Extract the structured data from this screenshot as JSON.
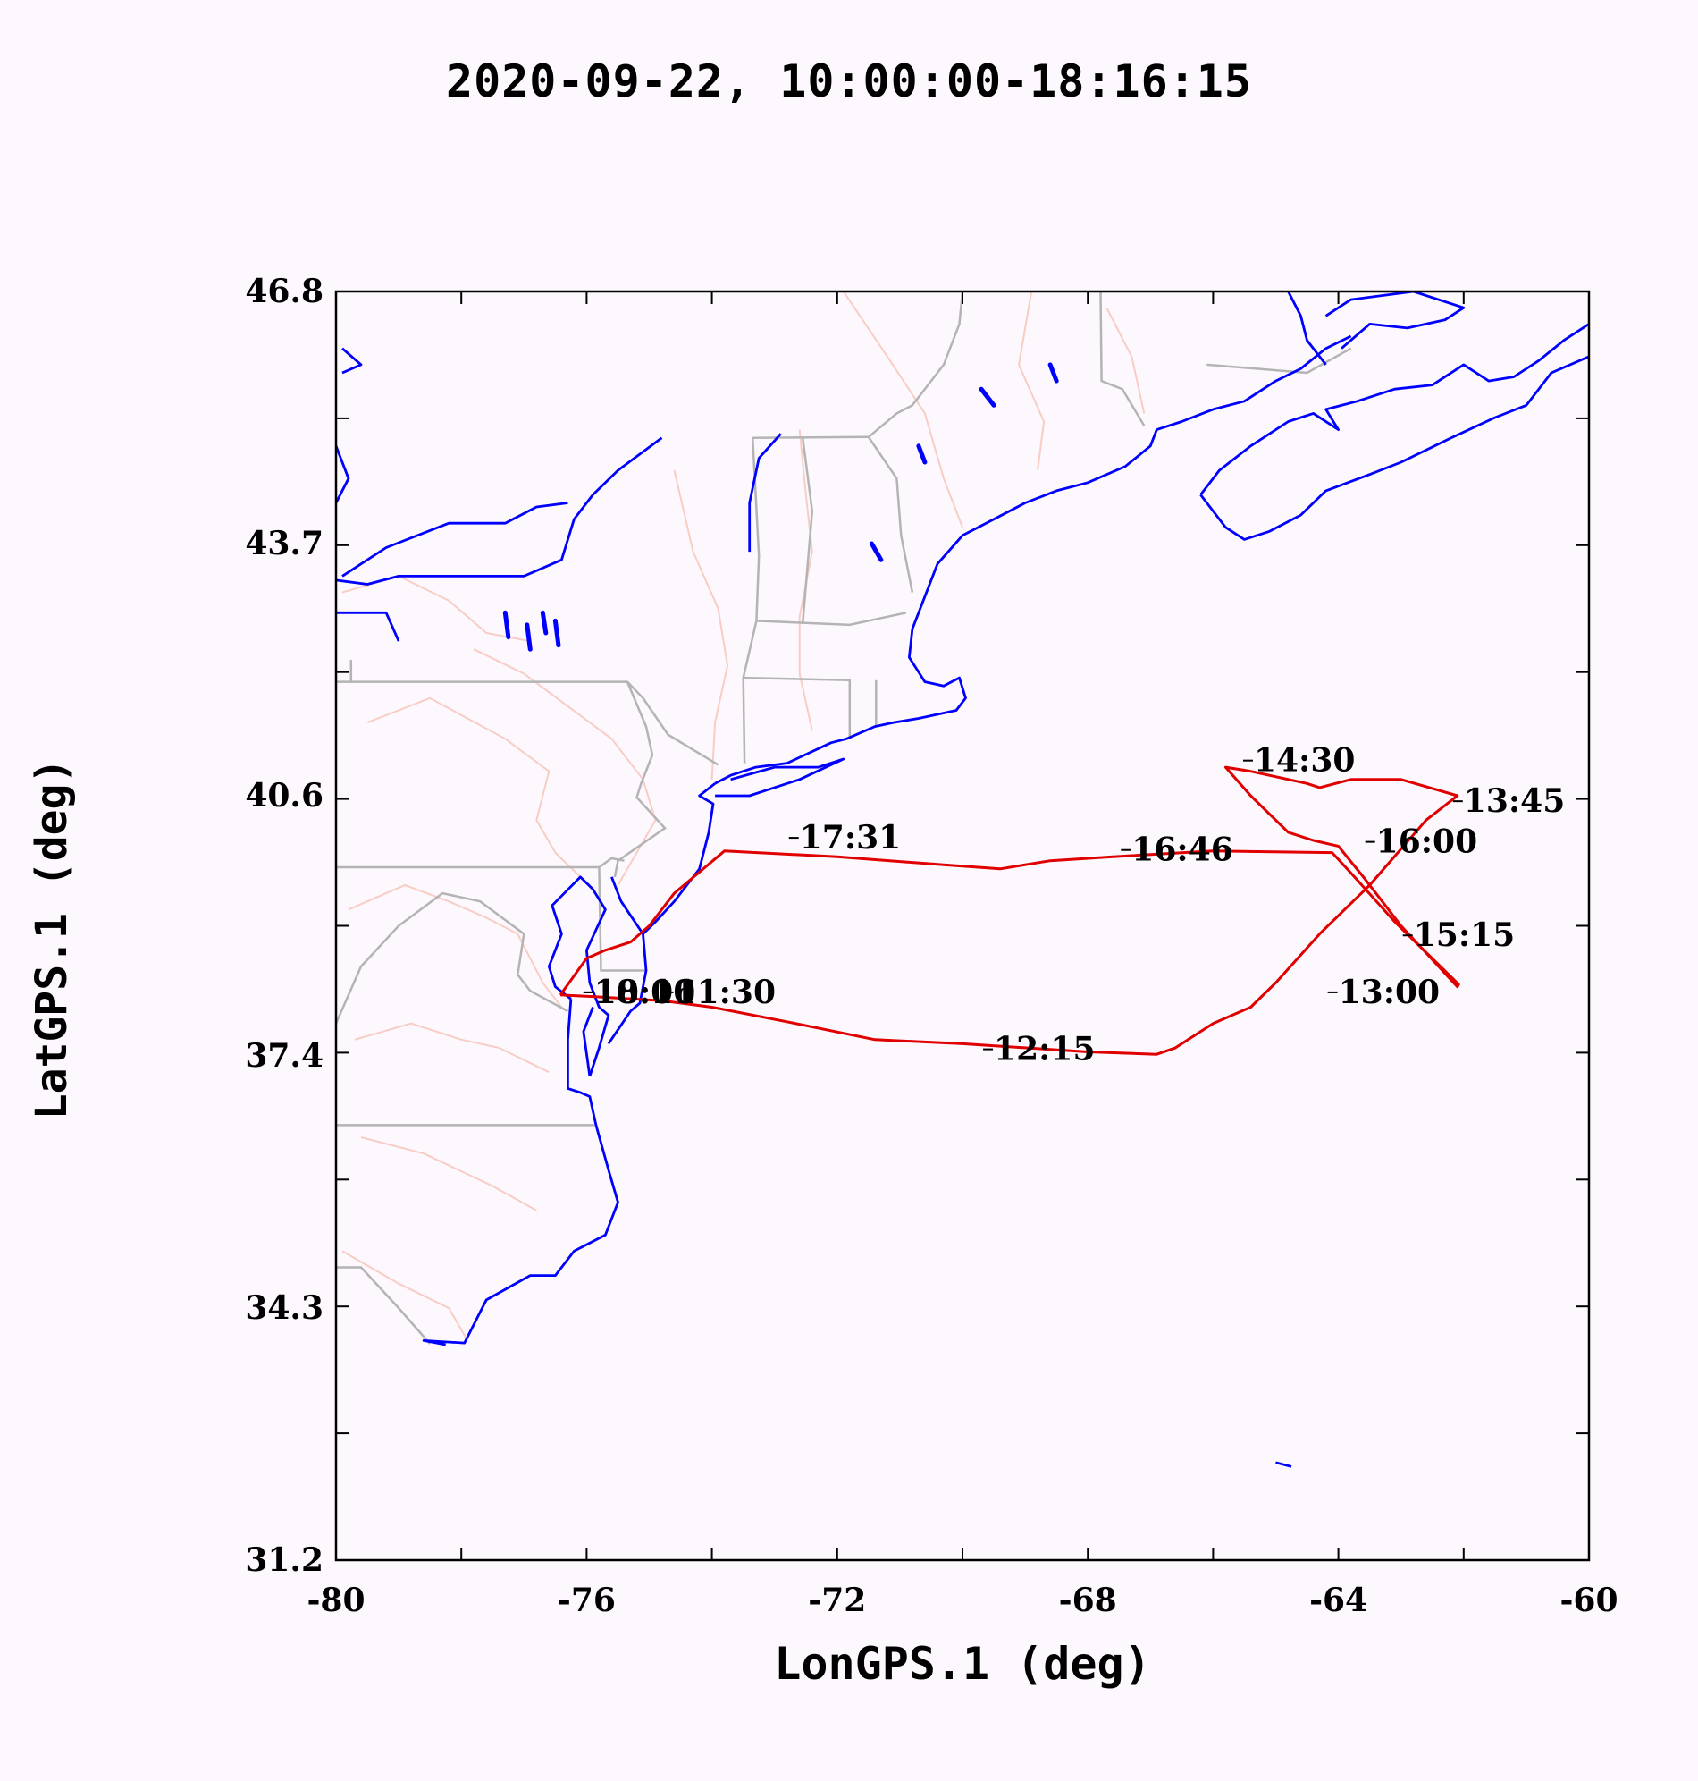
{
  "title": "2020-09-22, 10:00:00-18:16:15",
  "colors": {
    "background": "#fdf8fd",
    "coastline": "#0000ff",
    "state_border": "#b4b4b4",
    "river": "#f7cdc4",
    "flight_track": "#e00000",
    "axis": "#000000"
  },
  "chart_data": {
    "type": "line",
    "xlabel": "LonGPS.1 (deg)",
    "ylabel": "LatGPS.1 (deg)",
    "xlim": [
      -80,
      -60
    ],
    "ylim": [
      31.2,
      46.8
    ],
    "x_ticks": [
      -80,
      -76,
      -72,
      -68,
      -64,
      -60
    ],
    "x_tick_labels": [
      "-80",
      "-76",
      "-72",
      "-68",
      "-64",
      "-60"
    ],
    "x_minor_step": 2,
    "y_ticks": [
      31.2,
      34.3,
      37.4,
      40.6,
      43.7,
      46.8
    ],
    "y_tick_labels": [
      "31.2",
      "34.3",
      "37.4",
      "40.6",
      "43.7",
      "46.8"
    ],
    "y_minor_step": 1.56,
    "basemap": "coastlines, state borders and rivers of the US East Coast and Canadian Maritimes",
    "flight_track": [
      [
        -76.42,
        38.15
      ],
      [
        -75.9,
        38.13
      ],
      [
        -74.8,
        38.08
      ],
      [
        -74.0,
        38.0
      ],
      [
        -72.8,
        37.82
      ],
      [
        -71.4,
        37.6
      ],
      [
        -70.0,
        37.55
      ],
      [
        -68.0,
        37.45
      ],
      [
        -66.9,
        37.42
      ],
      [
        -66.6,
        37.5
      ],
      [
        -66.0,
        37.8
      ],
      [
        -65.4,
        38.0
      ],
      [
        -65.0,
        38.3
      ],
      [
        -64.3,
        38.9
      ],
      [
        -63.9,
        39.2
      ],
      [
        -63.5,
        39.5
      ],
      [
        -62.6,
        40.3
      ],
      [
        -62.1,
        40.6
      ],
      [
        -63.0,
        40.8
      ],
      [
        -63.8,
        40.8
      ],
      [
        -64.3,
        40.7
      ],
      [
        -64.5,
        40.75
      ],
      [
        -65.4,
        40.9
      ],
      [
        -65.8,
        40.95
      ],
      [
        -65.4,
        40.6
      ],
      [
        -64.8,
        40.15
      ],
      [
        -64.4,
        40.05
      ],
      [
        -64.0,
        39.98
      ],
      [
        -63.6,
        39.6
      ],
      [
        -63.0,
        39.0
      ],
      [
        -62.1,
        38.25
      ],
      [
        -62.08,
        38.28
      ],
      [
        -63.1,
        39.05
      ],
      [
        -63.8,
        39.65
      ],
      [
        -64.1,
        39.9
      ],
      [
        -66.0,
        39.92
      ],
      [
        -67.6,
        39.85
      ],
      [
        -68.6,
        39.8
      ],
      [
        -69.4,
        39.7
      ],
      [
        -70.3,
        39.75
      ],
      [
        -72.0,
        39.85
      ],
      [
        -73.8,
        39.92
      ],
      [
        -74.6,
        39.4
      ],
      [
        -75.0,
        39.0
      ],
      [
        -75.3,
        38.8
      ],
      [
        -75.7,
        38.7
      ],
      [
        -76.0,
        38.6
      ],
      [
        -76.42,
        38.15
      ]
    ],
    "annotations": [
      {
        "text": "10:00",
        "lon": -75.88,
        "lat": 38.05
      },
      {
        "text": "18:16",
        "lon": -75.88,
        "lat": 38.05
      },
      {
        "text": "11:30",
        "lon": -74.6,
        "lat": 38.05
      },
      {
        "text": "12:15",
        "lon": -69.5,
        "lat": 37.35
      },
      {
        "text": "13:00",
        "lon": -64.0,
        "lat": 38.05
      },
      {
        "text": "13:45",
        "lon": -62.0,
        "lat": 40.4
      },
      {
        "text": "14:30",
        "lon": -65.35,
        "lat": 40.9
      },
      {
        "text": "15:15",
        "lon": -62.8,
        "lat": 38.75
      },
      {
        "text": "16:00",
        "lon": -63.4,
        "lat": 39.9
      },
      {
        "text": "16:46",
        "lon": -67.3,
        "lat": 39.8
      },
      {
        "text": "17:31",
        "lon": -72.6,
        "lat": 39.95
      }
    ]
  }
}
